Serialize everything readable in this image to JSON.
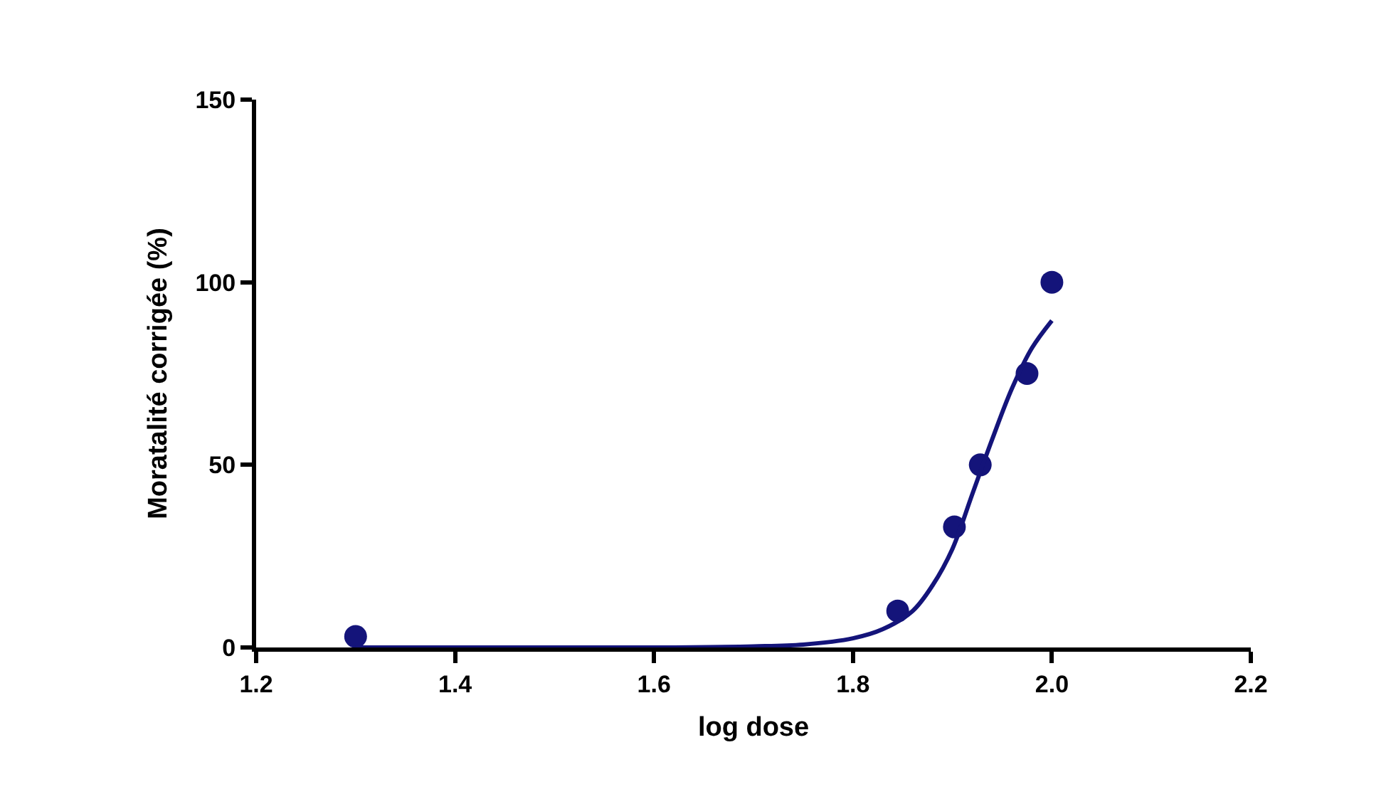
{
  "chart_data": {
    "type": "scatter",
    "xlabel": "log dose",
    "ylabel": "Moratalité corrigée (%)",
    "xlim": [
      1.2,
      2.2
    ],
    "xticks": [
      {
        "value": 1.2,
        "label": "1.2"
      },
      {
        "value": 1.4,
        "label": "1.4"
      },
      {
        "value": 1.6,
        "label": "1.6"
      },
      {
        "value": 1.8,
        "label": "1.8"
      },
      {
        "value": 2.0,
        "label": "2.0"
      },
      {
        "value": 2.2,
        "label": "2.2"
      }
    ],
    "ylim": [
      0,
      150
    ],
    "yticks": [
      0,
      50,
      100,
      150
    ],
    "marker": "circle",
    "series": [
      {
        "color": "#14147a",
        "x": [
          1.3,
          1.845,
          1.902,
          1.928,
          1.975,
          2.0
        ],
        "values": [
          3,
          10,
          33,
          50,
          75,
          100
        ]
      },
      {
        "type": "line",
        "color": "#14147a",
        "marker": "none",
        "line_style": "solid",
        "x": [
          1.3,
          1.5,
          1.6,
          1.7,
          1.75,
          1.8,
          1.83,
          1.86,
          1.88,
          1.9,
          1.92,
          1.94,
          1.96,
          1.98,
          2.0
        ],
        "values": [
          0,
          0,
          0,
          0.3,
          0.8,
          2.5,
          5,
          10,
          17,
          27,
          42,
          57,
          71,
          82,
          89.5
        ]
      }
    ]
  }
}
